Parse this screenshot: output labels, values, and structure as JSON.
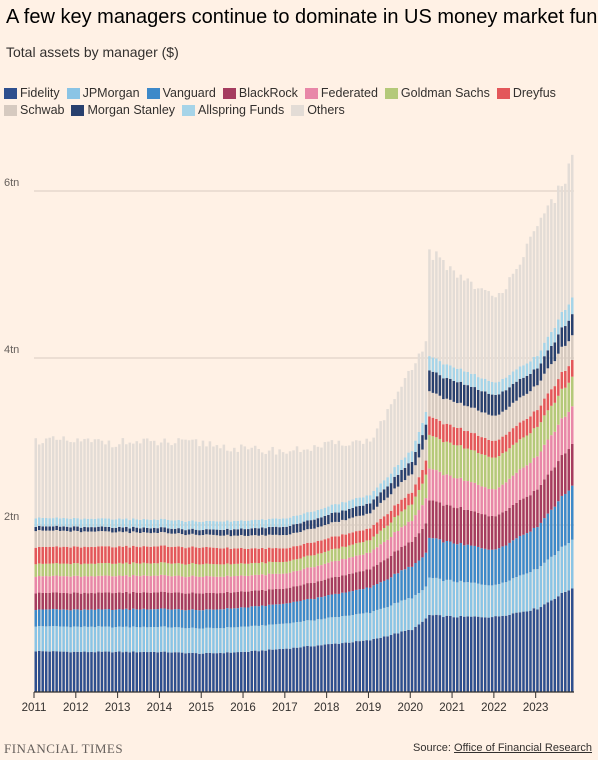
{
  "header": {
    "title": "A few key managers continue to dominate in US money market funds",
    "subtitle": "Total assets by manager ($)"
  },
  "footer": {
    "brand": "FINANCIAL TIMES",
    "source_prefix": "Source: ",
    "source_name": "Office of Financial Research"
  },
  "chart_data": {
    "type": "bar",
    "stacked": true,
    "subtitle": "Total assets by manager ($)",
    "y_ticks": [
      {
        "value": 2,
        "label": "2tn"
      },
      {
        "value": 4,
        "label": "4tn"
      },
      {
        "value": 6,
        "label": "6tn"
      }
    ],
    "ylim": [
      0,
      6.4
    ],
    "x_ticks": [
      "2011",
      "2012",
      "2013",
      "2014",
      "2015",
      "2016",
      "2017",
      "2018",
      "2019",
      "2020",
      "2021",
      "2022",
      "2023"
    ],
    "x_start_year": 2011,
    "months": 155,
    "legend_position": "top",
    "grid": "horizontal",
    "series": [
      {
        "name": "Fidelity",
        "color": "#2E4F8E",
        "anchors": [
          [
            0,
            0.49
          ],
          [
            12,
            0.48
          ],
          [
            36,
            0.48
          ],
          [
            48,
            0.46
          ],
          [
            60,
            0.48
          ],
          [
            72,
            0.52
          ],
          [
            84,
            0.57
          ],
          [
            96,
            0.62
          ],
          [
            108,
            0.75
          ],
          [
            110,
            0.8
          ],
          [
            113,
            0.92
          ],
          [
            120,
            0.9
          ],
          [
            132,
            0.9
          ],
          [
            144,
            1.0
          ],
          [
            154,
            1.25
          ]
        ]
      },
      {
        "name": "JPMorgan",
        "color": "#8AC4E5",
        "anchors": [
          [
            0,
            0.3
          ],
          [
            48,
            0.3
          ],
          [
            72,
            0.3
          ],
          [
            96,
            0.33
          ],
          [
            108,
            0.38
          ],
          [
            112,
            0.38
          ],
          [
            113,
            0.45
          ],
          [
            132,
            0.38
          ],
          [
            144,
            0.48
          ],
          [
            154,
            0.58
          ]
        ]
      },
      {
        "name": "Vanguard",
        "color": "#3D89C9",
        "anchors": [
          [
            0,
            0.2
          ],
          [
            48,
            0.22
          ],
          [
            72,
            0.24
          ],
          [
            96,
            0.3
          ],
          [
            108,
            0.38
          ],
          [
            112,
            0.4
          ],
          [
            113,
            0.48
          ],
          [
            132,
            0.42
          ],
          [
            144,
            0.5
          ],
          [
            154,
            0.65
          ]
        ]
      },
      {
        "name": "BlackRock",
        "color": "#A53C5F",
        "anchors": [
          [
            0,
            0.2
          ],
          [
            48,
            0.2
          ],
          [
            72,
            0.18
          ],
          [
            96,
            0.22
          ],
          [
            108,
            0.3
          ],
          [
            112,
            0.35
          ],
          [
            113,
            0.45
          ],
          [
            132,
            0.4
          ],
          [
            144,
            0.45
          ],
          [
            154,
            0.5
          ]
        ]
      },
      {
        "name": "Federated",
        "color": "#E887A8",
        "anchors": [
          [
            0,
            0.2
          ],
          [
            48,
            0.2
          ],
          [
            72,
            0.18
          ],
          [
            96,
            0.2
          ],
          [
            108,
            0.25
          ],
          [
            112,
            0.3
          ],
          [
            113,
            0.38
          ],
          [
            132,
            0.32
          ],
          [
            144,
            0.4
          ],
          [
            154,
            0.45
          ]
        ]
      },
      {
        "name": "Goldman Sachs",
        "color": "#B4C979",
        "anchors": [
          [
            0,
            0.15
          ],
          [
            48,
            0.15
          ],
          [
            72,
            0.14
          ],
          [
            96,
            0.15
          ],
          [
            108,
            0.2
          ],
          [
            112,
            0.28
          ],
          [
            113,
            0.4
          ],
          [
            132,
            0.38
          ],
          [
            144,
            0.35
          ],
          [
            154,
            0.35
          ]
        ]
      },
      {
        "name": "Dreyfus",
        "color": "#E3575A",
        "anchors": [
          [
            0,
            0.2
          ],
          [
            48,
            0.2
          ],
          [
            72,
            0.16
          ],
          [
            96,
            0.14
          ],
          [
            108,
            0.14
          ],
          [
            112,
            0.17
          ],
          [
            113,
            0.22
          ],
          [
            132,
            0.2
          ],
          [
            144,
            0.2
          ],
          [
            154,
            0.2
          ]
        ]
      },
      {
        "name": "Schwab",
        "color": "#D6CAC0",
        "anchors": [
          [
            0,
            0.2
          ],
          [
            48,
            0.15
          ],
          [
            72,
            0.16
          ],
          [
            96,
            0.18
          ],
          [
            108,
            0.22
          ],
          [
            112,
            0.25
          ],
          [
            113,
            0.3
          ],
          [
            132,
            0.3
          ],
          [
            144,
            0.3
          ],
          [
            154,
            0.3
          ]
        ]
      },
      {
        "name": "Morgan Stanley",
        "color": "#28406E",
        "anchors": [
          [
            0,
            0.05
          ],
          [
            48,
            0.06
          ],
          [
            72,
            0.1
          ],
          [
            96,
            0.12
          ],
          [
            108,
            0.15
          ],
          [
            112,
            0.18
          ],
          [
            113,
            0.25
          ],
          [
            132,
            0.25
          ],
          [
            144,
            0.2
          ],
          [
            154,
            0.25
          ]
        ]
      },
      {
        "name": "Allspring Funds",
        "color": "#A6D4E8",
        "anchors": [
          [
            0,
            0.1
          ],
          [
            48,
            0.1
          ],
          [
            72,
            0.1
          ],
          [
            96,
            0.1
          ],
          [
            108,
            0.13
          ],
          [
            112,
            0.15
          ],
          [
            113,
            0.17
          ],
          [
            132,
            0.15
          ],
          [
            144,
            0.15
          ],
          [
            154,
            0.2
          ]
        ]
      },
      {
        "name": "Others",
        "color": "#E3DCD6",
        "anchors": [
          [
            0,
            0.93
          ],
          [
            12,
            0.92
          ],
          [
            36,
            0.92
          ],
          [
            48,
            0.94
          ],
          [
            60,
            0.85
          ],
          [
            72,
            0.8
          ],
          [
            84,
            0.74
          ],
          [
            96,
            0.65
          ],
          [
            108,
            0.95
          ],
          [
            112,
            0.85
          ],
          [
            113,
            1.25
          ],
          [
            120,
            1.15
          ],
          [
            132,
            1.0
          ],
          [
            144,
            1.5
          ],
          [
            154,
            1.62
          ]
        ]
      }
    ]
  }
}
